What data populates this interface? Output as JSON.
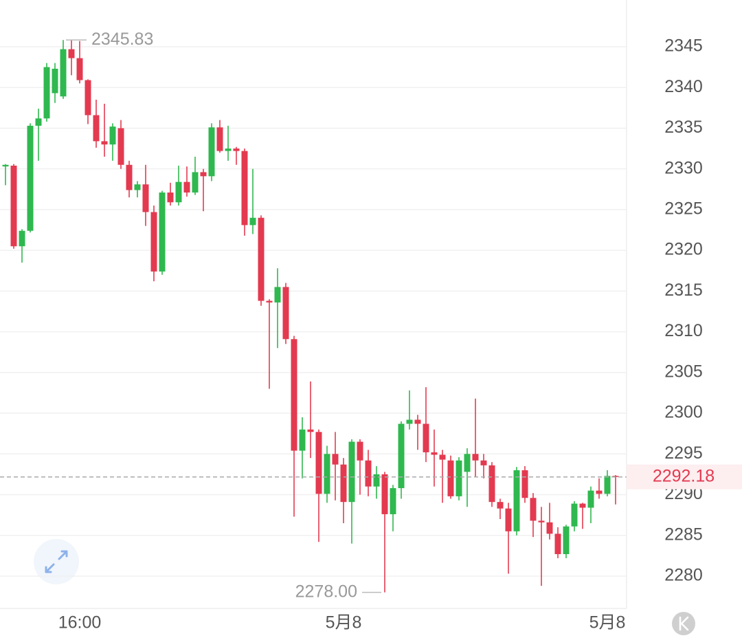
{
  "chart_data": {
    "type": "candlestick",
    "categories": [
      null,
      null,
      null,
      null,
      null,
      null,
      null,
      null,
      null,
      "16:00",
      null,
      null,
      null,
      null,
      null,
      null,
      null,
      null,
      null,
      null,
      null,
      null,
      null,
      null,
      null,
      null,
      null,
      null,
      null,
      null,
      null,
      null,
      null,
      null,
      null,
      null,
      null,
      null,
      null,
      null,
      null,
      "5月8",
      null,
      null,
      null,
      null,
      null,
      null,
      null,
      null,
      null,
      null,
      null,
      null,
      null,
      null,
      null,
      null,
      null,
      null,
      null,
      null,
      null,
      null,
      null,
      null,
      null,
      null,
      null,
      null,
      null,
      null,
      null,
      "5月8",
      null
    ],
    "open": [
      2330.3,
      2330.4,
      2320.5,
      2322.4,
      2335.3,
      2336.2,
      2339.3,
      2338.9,
      2344.7,
      2343.6,
      2340.9,
      2336.6,
      2333.4,
      2333.0,
      2335.0,
      2330.5,
      2327.4,
      2328.1,
      2324.7,
      2317.4,
      2327.1,
      2325.9,
      2328.4,
      2327.1,
      2329.6,
      2329.1,
      2335.1,
      2332.2,
      2332.5,
      2332.2,
      2323.1,
      2324.0,
      2313.8,
      2313.6,
      2315.5,
      2309.1,
      2295.4,
      2298.0,
      2297.7,
      2290.1,
      2295.0,
      2293.7,
      2289.1,
      2296.5,
      2294.2,
      2291.0,
      2292.5,
      2287.6,
      2290.8,
      2298.7,
      2299.2,
      2298.7,
      2295.2,
      2294.9,
      2294.2,
      2289.8,
      2292.8,
      2295.0,
      2294.2,
      2293.6,
      2289.1,
      2288.3,
      2285.5,
      2293.0,
      2289.6,
      2286.8,
      2286.6,
      2285.2,
      2282.7,
      2286.1,
      2288.9,
      2288.4,
      2290.5,
      2290.1,
      2292.3
    ],
    "high": [
      2330.6,
      2330.6,
      2322.6,
      2335.6,
      2337.4,
      2343.0,
      2343.0,
      2345.83,
      2345.8,
      2345.7,
      2341.0,
      2338.5,
      2338.0,
      2335.6,
      2336.0,
      2331.0,
      2328.5,
      2330.5,
      2325.5,
      2327.3,
      2328.3,
      2330.4,
      2330.3,
      2331.5,
      2330.0,
      2335.6,
      2336.0,
      2335.3,
      2332.7,
      2332.5,
      2330.0,
      2324.3,
      2314.0,
      2317.8,
      2316.0,
      2309.5,
      2299.5,
      2303.9,
      2298.0,
      2296.0,
      2297.7,
      2294.5,
      2296.8,
      2296.8,
      2295.5,
      2293.5,
      2292.8,
      2291.2,
      2299.0,
      2302.8,
      2299.8,
      2303.2,
      2298.0,
      2295.5,
      2294.8,
      2294.6,
      2295.7,
      2301.8,
      2295.0,
      2294.0,
      2289.5,
      2289.0,
      2293.4,
      2293.5,
      2290.2,
      2288.5,
      2289.0,
      2286.0,
      2286.3,
      2289.2,
      2289.0,
      2291.0,
      2292.0,
      2293.0,
      2292.4
    ],
    "low": [
      2328.0,
      2320.2,
      2318.5,
      2322.2,
      2331.0,
      2335.8,
      2338.1,
      2338.6,
      2341.5,
      2340.5,
      2335.5,
      2332.6,
      2331.5,
      2331.0,
      2330.0,
      2326.5,
      2326.5,
      2323.0,
      2316.2,
      2317.0,
      2325.5,
      2325.5,
      2326.6,
      2326.8,
      2324.8,
      2328.5,
      2332.0,
      2331.0,
      2330.5,
      2321.8,
      2322.0,
      2313.2,
      2303.0,
      2308.0,
      2308.5,
      2287.3,
      2292.0,
      2294.5,
      2284.2,
      2289.0,
      2289.3,
      2286.5,
      2284.0,
      2290.0,
      2289.8,
      2289.5,
      2278.0,
      2285.5,
      2289.5,
      2298.0,
      2295.5,
      2294.0,
      2291.0,
      2289.0,
      2289.5,
      2289.3,
      2288.5,
      2292.2,
      2292.0,
      2288.5,
      2287.0,
      2280.3,
      2285.0,
      2289.0,
      2284.8,
      2278.8,
      2284.5,
      2282.2,
      2282.2,
      2285.5,
      2285.8,
      2286.5,
      2289.5,
      2289.8,
      2288.8
    ],
    "close": [
      2330.5,
      2320.5,
      2322.4,
      2335.3,
      2336.2,
      2342.5,
      2342.3,
      2344.7,
      2343.6,
      2340.9,
      2336.6,
      2333.4,
      2333.0,
      2335.2,
      2330.5,
      2327.4,
      2328.1,
      2324.7,
      2317.4,
      2327.1,
      2325.9,
      2328.4,
      2327.1,
      2329.6,
      2329.1,
      2335.1,
      2332.2,
      2332.5,
      2332.2,
      2323.1,
      2324.0,
      2313.8,
      2313.6,
      2315.5,
      2309.1,
      2295.4,
      2298.0,
      2297.7,
      2290.1,
      2295.0,
      2293.7,
      2289.1,
      2296.5,
      2294.2,
      2291.0,
      2292.5,
      2287.6,
      2290.8,
      2298.7,
      2299.2,
      2298.7,
      2295.2,
      2294.9,
      2294.3,
      2289.8,
      2294.2,
      2295.0,
      2294.2,
      2293.6,
      2289.1,
      2288.3,
      2285.5,
      2293.0,
      2289.6,
      2286.8,
      2286.6,
      2285.2,
      2282.7,
      2286.1,
      2288.9,
      2288.4,
      2290.5,
      2290.1,
      2292.3,
      2292.18
    ],
    "up_color": "#2fb84f",
    "down_color": "#e33a50",
    "ylim": [
      2276.03,
      2350.74
    ],
    "yticks": [
      2280,
      2285,
      2290,
      2295,
      2300,
      2305,
      2310,
      2315,
      2320,
      2325,
      2330,
      2335,
      2340,
      2345
    ],
    "grid": true,
    "last_price": 2292.18,
    "max_label": {
      "value": 2345.83
    },
    "min_label": {
      "value": 2278,
      "label": "2278.00"
    }
  }
}
